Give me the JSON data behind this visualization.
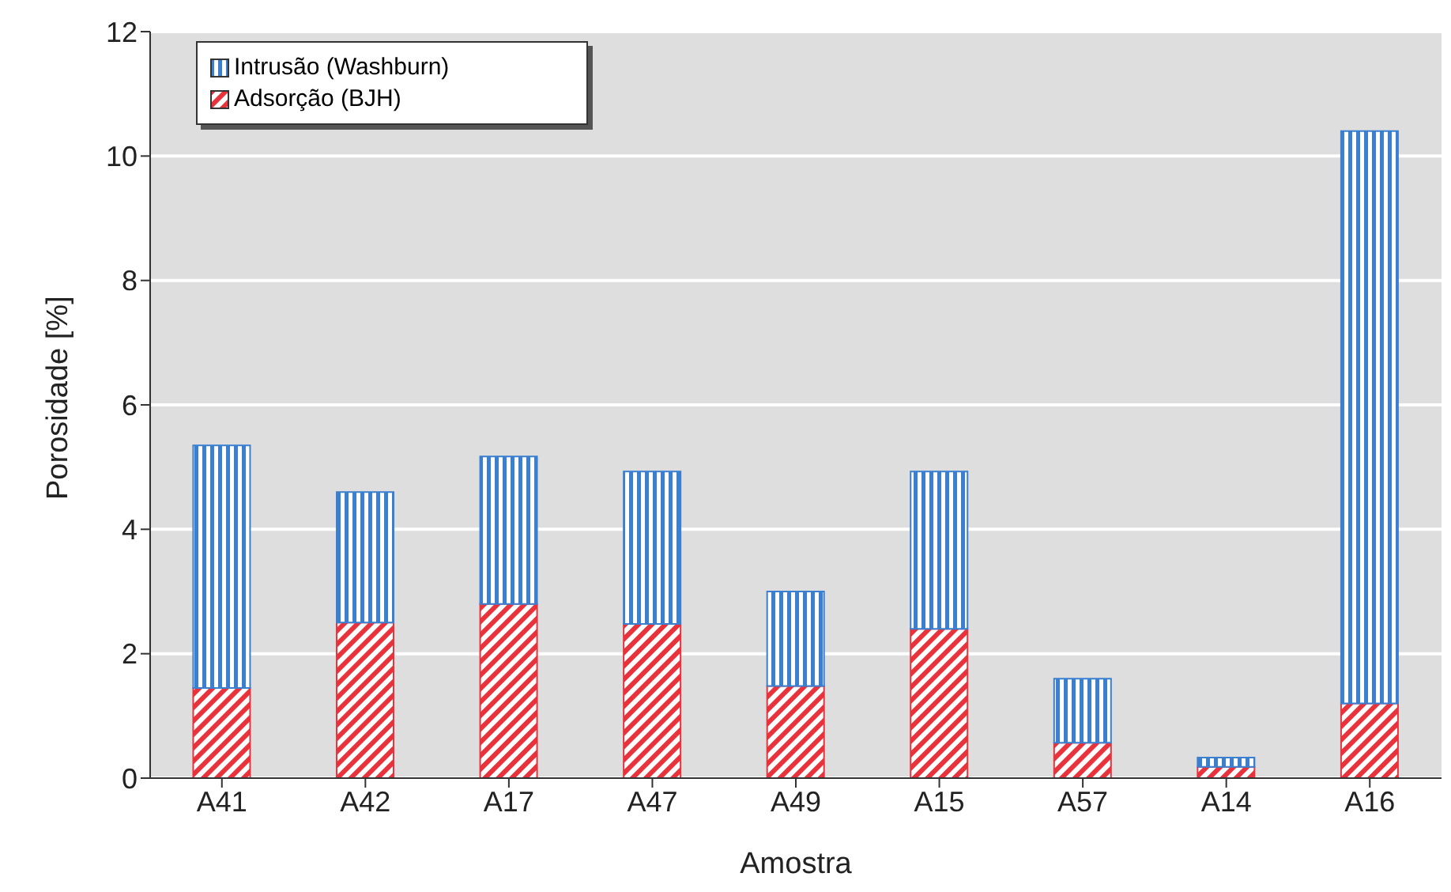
{
  "chart_data": {
    "type": "bar",
    "stacked": true,
    "xlabel": "Amostra",
    "ylabel": "Porosidade [%]",
    "categories": [
      "A41",
      "A42",
      "A17",
      "A47",
      "A49",
      "A15",
      "A57",
      "A14",
      "A16"
    ],
    "series": [
      {
        "name": "Adsorção (BJH)",
        "color": "#e8323c",
        "values": [
          1.45,
          2.5,
          2.8,
          2.48,
          1.48,
          2.4,
          0.57,
          0.18,
          1.2
        ]
      },
      {
        "name": "Intrusão (Washburn)",
        "color": "#3a7fd0",
        "values": [
          3.9,
          2.1,
          2.37,
          2.45,
          1.52,
          2.53,
          1.03,
          0.15,
          9.2
        ]
      }
    ],
    "ylim": [
      0,
      12
    ],
    "yticks": [
      0,
      2,
      4,
      6,
      8,
      10,
      12
    ],
    "grid": "y",
    "legend": "top left"
  }
}
